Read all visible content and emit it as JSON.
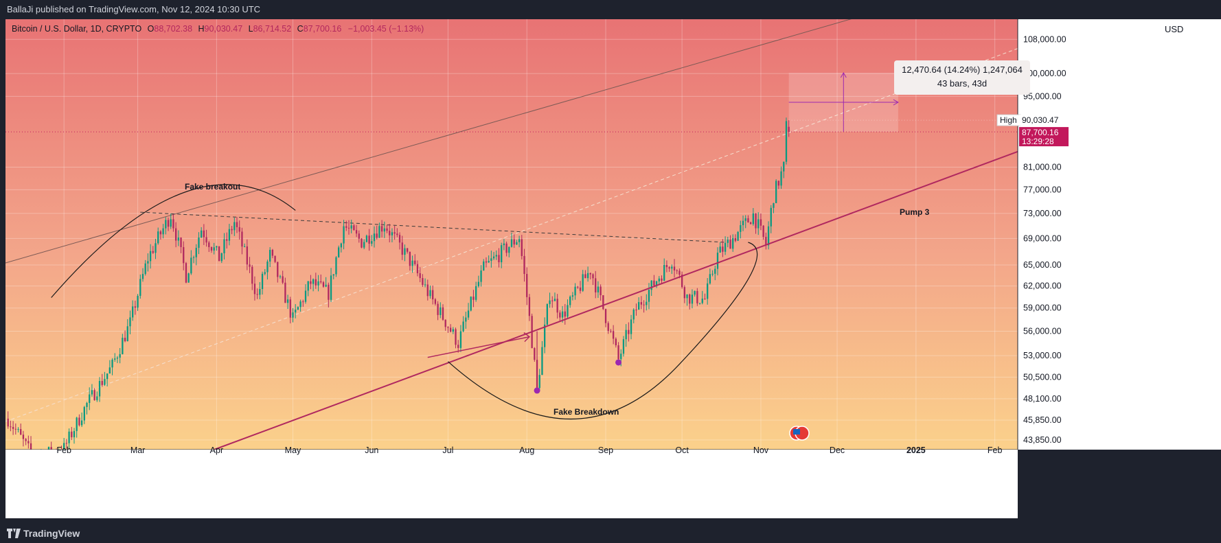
{
  "header": {
    "publisher_line": "BallaJi published on TradingView.com, Nov 12, 2024 10:30 UTC"
  },
  "footer": {
    "brand": "TradingView"
  },
  "currency": "USD",
  "legend": {
    "symbol": "Bitcoin / U.S. Dollar, 1D, CRYPTO",
    "open_label": "O",
    "open": "88,702.38",
    "high_label": "H",
    "high": "90,030.47",
    "low_label": "L",
    "low": "86,714.52",
    "close_label": "C",
    "close": "87,700.16",
    "change": "−1,003.45 (−1.13%)"
  },
  "measure_box": {
    "line1": "12,470.64 (14.24%) 1,247,064",
    "line2": "43 bars, 43d"
  },
  "price_tags": {
    "high_label": "High",
    "high_value": "90,030.47",
    "last_value": "87,700.16",
    "countdown": "13:29:28"
  },
  "annotations": {
    "fake_breakout": "Fake breakout",
    "fake_breakdown": "Fake Breakdown",
    "pump3": "Pump 3"
  },
  "colors": {
    "up": "#089981",
    "down": "#b0285f",
    "trendline": "#b0285f",
    "marker": "#9c27b0",
    "tag": "#c2185b"
  },
  "chart_data": {
    "type": "candlestick",
    "title": "Bitcoin / U.S. Dollar, 1D, CRYPTO",
    "y_scale": "log",
    "ylim": [
      42900,
      113000
    ],
    "y_ticks": [
      108000,
      100000,
      95000,
      81000,
      77000,
      73000,
      69000,
      65000,
      62000,
      59000,
      56000,
      53000,
      50500,
      48100,
      45850,
      43850
    ],
    "y_tick_labels": [
      "108,000.00",
      "100,000.00",
      "95,000.00",
      "81,000.00",
      "77,000.00",
      "73,000.00",
      "69,000.00",
      "65,000.00",
      "62,000.00",
      "59,000.00",
      "56,000.00",
      "53,000.00",
      "50,500.00",
      "48,100.00",
      "45,850.00",
      "43,850.00"
    ],
    "x_labels": [
      "Feb",
      "Mar",
      "Apr",
      "May",
      "Jun",
      "Jul",
      "Aug",
      "Sep",
      "Oct",
      "Nov",
      "Dec",
      "2025",
      "Feb"
    ],
    "x_label_dates": [
      "2024-02-01",
      "2024-03-01",
      "2024-04-01",
      "2024-05-01",
      "2024-06-01",
      "2024-07-01",
      "2024-08-01",
      "2024-09-01",
      "2024-10-01",
      "2024-11-01",
      "2024-12-01",
      "2025-01-01",
      "2025-02-01"
    ],
    "xlim": [
      "2024-01-09",
      "2025-02-10"
    ],
    "last_bar_date": "2024-11-12",
    "price_path": [
      [
        "2024-01-10",
        46000
      ],
      [
        "2024-01-20",
        42100
      ],
      [
        "2024-02-01",
        43000
      ],
      [
        "2024-02-10",
        47500
      ],
      [
        "2024-02-20",
        51800
      ],
      [
        "2024-02-27",
        57000
      ],
      [
        "2024-03-05",
        66000
      ],
      [
        "2024-03-14",
        72800
      ],
      [
        "2024-03-20",
        63500
      ],
      [
        "2024-03-26",
        70500
      ],
      [
        "2024-04-02",
        66000
      ],
      [
        "2024-04-08",
        71600
      ],
      [
        "2024-04-17",
        60500
      ],
      [
        "2024-04-22",
        66500
      ],
      [
        "2024-05-01",
        57500
      ],
      [
        "2024-05-08",
        62500
      ],
      [
        "2024-05-15",
        61000
      ],
      [
        "2024-05-21",
        71000
      ],
      [
        "2024-05-28",
        68500
      ],
      [
        "2024-06-06",
        71200
      ],
      [
        "2024-06-15",
        66200
      ],
      [
        "2024-06-24",
        60500
      ],
      [
        "2024-07-05",
        54500
      ],
      [
        "2024-07-15",
        64500
      ],
      [
        "2024-07-29",
        69200
      ],
      [
        "2024-08-05",
        49000
      ],
      [
        "2024-08-10",
        61000
      ],
      [
        "2024-08-15",
        58000
      ],
      [
        "2024-08-26",
        64300
      ],
      [
        "2024-09-06",
        52500
      ],
      [
        "2024-09-13",
        58900
      ],
      [
        "2024-09-27",
        65800
      ],
      [
        "2024-10-03",
        60500
      ],
      [
        "2024-10-10",
        60200
      ],
      [
        "2024-10-15",
        66500
      ],
      [
        "2024-10-21",
        69000
      ],
      [
        "2024-10-29",
        72800
      ],
      [
        "2024-11-03",
        68000
      ],
      [
        "2024-11-06",
        76000
      ],
      [
        "2024-11-10",
        81000
      ],
      [
        "2024-11-11",
        88700
      ],
      [
        "2024-11-12",
        87700
      ]
    ],
    "candle_count": 308,
    "extremes": {
      "low_2024-08-05": 49000,
      "high_2024-11-12": 90030.47,
      "last_close": 87700.16
    },
    "measurement": {
      "from": "2024-11-12",
      "to": "2024-12-25",
      "price_from": 87700.16,
      "price_to": 100170.8,
      "change": 12470.64,
      "change_pct": 14.24,
      "bars": 43
    },
    "trendlines": [
      {
        "name": "upper channel",
        "from": [
          "2024-01-09",
          65300
        ],
        "to": [
          "2024-12-21",
          115800
        ],
        "color": "#7b5a55"
      },
      {
        "name": "middle channel dashed",
        "from": [
          "2024-01-09",
          45700
        ],
        "to": [
          "2025-02-10",
          105800
        ],
        "color": "#f5e0d0",
        "dashed": true
      },
      {
        "name": "lower support",
        "from": [
          "2024-03-31",
          42900
        ],
        "to": [
          "2025-02-10",
          83900
        ],
        "color": "#b0285f"
      },
      {
        "name": "neckline dashed",
        "from": [
          "2024-03-02",
          73200
        ],
        "to": [
          "2024-10-18",
          68400
        ],
        "color": "#3a3a3a",
        "dashed": true
      }
    ]
  }
}
